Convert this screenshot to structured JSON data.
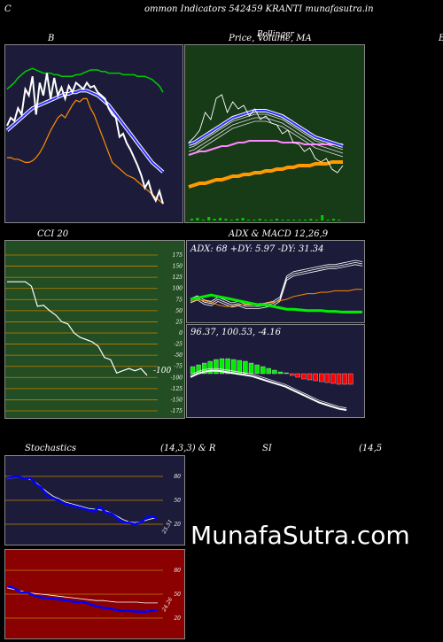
{
  "header": {
    "letter_c": "C",
    "title": "ommon  Indicators 542459 KRANTI munafasutra.in",
    "letter_b_right": "B"
  },
  "panels": {
    "bollinger": {
      "title": "B",
      "bg": "#1c1c3a"
    },
    "price": {
      "title": "Price,  Volume,  MA",
      "overlap": "Bollinger",
      "bg": "#173a17"
    },
    "cci": {
      "title": "CCI 20",
      "bg": "#234d23",
      "value_label": "-100",
      "ticks": [
        "175",
        "150",
        "125",
        "100",
        "75",
        "50",
        "25",
        "0",
        "-25",
        "-50",
        "-75",
        "-100",
        "-125",
        "-150",
        "-175"
      ]
    },
    "adx": {
      "title": "ADX  & MACD 12,26,9",
      "label": "ADX: 68  +DY: 5.97 -DY: 31.34",
      "bg": "#1c1c3a"
    },
    "macd": {
      "label": "96.37,  100.53,  -4.16",
      "bg": "#1c1c3a"
    },
    "stoch": {
      "title_left": "Stochastics",
      "title_mid": "(14,3,3) & R",
      "ticks": [
        "80",
        "50",
        "20"
      ],
      "value_label": "25.51",
      "bg": "#1c1c3a"
    },
    "rsi": {
      "title_mid": "SI",
      "title_right": "(14,5",
      "ticks": [
        "80",
        "50",
        "20"
      ],
      "value_label": "24.26",
      "bg": "#8b0000"
    }
  },
  "watermark": "MunafaSutra.com",
  "colors": {
    "accent_blue": "#0000ff",
    "orange": "#ff8c00",
    "green": "#00cc00",
    "grid_orange": "#c08000"
  },
  "chart_data": [
    {
      "type": "line",
      "name": "bollinger",
      "series": [
        {
          "name": "close",
          "color": "#ffffff",
          "values": [
            0.55,
            0.6,
            0.58,
            0.66,
            0.62,
            0.78,
            0.74,
            0.86,
            0.62,
            0.82,
            0.74,
            0.88,
            0.72,
            0.85,
            0.74,
            0.79,
            0.72,
            0.8,
            0.76,
            0.82,
            0.8,
            0.78,
            0.82,
            0.79,
            0.8,
            0.76,
            0.74,
            0.72,
            0.66,
            0.62,
            0.6,
            0.48,
            0.5,
            0.44,
            0.4,
            0.35,
            0.3,
            0.24,
            0.16,
            0.2,
            0.12,
            0.08,
            0.14,
            0.06
          ]
        },
        {
          "name": "upper",
          "color": "#00cc00",
          "values": [
            0.78,
            0.8,
            0.82,
            0.85,
            0.87,
            0.89,
            0.9,
            0.91,
            0.9,
            0.89,
            0.88,
            0.88,
            0.88,
            0.87,
            0.87,
            0.86,
            0.86,
            0.86,
            0.86,
            0.87,
            0.87,
            0.88,
            0.89,
            0.9,
            0.9,
            0.9,
            0.89,
            0.89,
            0.88,
            0.88,
            0.88,
            0.88,
            0.87,
            0.87,
            0.87,
            0.87,
            0.86,
            0.86,
            0.86,
            0.85,
            0.84,
            0.82,
            0.8,
            0.76
          ]
        },
        {
          "name": "middle",
          "color": "#3333ff",
          "values": [
            0.52,
            0.54,
            0.56,
            0.58,
            0.6,
            0.62,
            0.64,
            0.66,
            0.67,
            0.68,
            0.69,
            0.7,
            0.71,
            0.72,
            0.73,
            0.74,
            0.75,
            0.75,
            0.76,
            0.76,
            0.77,
            0.77,
            0.77,
            0.76,
            0.75,
            0.74,
            0.72,
            0.7,
            0.68,
            0.65,
            0.62,
            0.59,
            0.56,
            0.53,
            0.5,
            0.47,
            0.44,
            0.41,
            0.38,
            0.35,
            0.32,
            0.3,
            0.28,
            0.26
          ]
        },
        {
          "name": "lower",
          "color": "#ff8c00",
          "values": [
            0.35,
            0.35,
            0.34,
            0.34,
            0.33,
            0.32,
            0.32,
            0.33,
            0.35,
            0.38,
            0.42,
            0.47,
            0.52,
            0.56,
            0.6,
            0.62,
            0.6,
            0.64,
            0.68,
            0.71,
            0.7,
            0.72,
            0.72,
            0.66,
            0.62,
            0.56,
            0.5,
            0.44,
            0.38,
            0.32,
            0.3,
            0.28,
            0.26,
            0.24,
            0.23,
            0.22,
            0.2,
            0.18,
            0.16,
            0.14,
            0.12,
            0.1,
            0.08,
            0.06
          ]
        }
      ]
    },
    {
      "type": "line",
      "name": "price_ma",
      "series": [
        {
          "name": "close",
          "color": "#ffffff",
          "values": [
            0.45,
            0.48,
            0.52,
            0.62,
            0.58,
            0.7,
            0.72,
            0.62,
            0.68,
            0.64,
            0.66,
            0.6,
            0.64,
            0.58,
            0.6,
            0.56,
            0.55,
            0.5,
            0.52,
            0.45,
            0.44,
            0.4,
            0.42,
            0.36,
            0.34,
            0.36,
            0.3,
            0.28,
            0.32
          ]
        },
        {
          "name": "ma_blue",
          "color": "#3333ff",
          "values": [
            0.44,
            0.45,
            0.47,
            0.49,
            0.51,
            0.53,
            0.55,
            0.57,
            0.59,
            0.6,
            0.61,
            0.62,
            0.63,
            0.63,
            0.63,
            0.62,
            0.61,
            0.6,
            0.58,
            0.56,
            0.54,
            0.52,
            0.5,
            0.48,
            0.47,
            0.46,
            0.45,
            0.44,
            0.43
          ]
        },
        {
          "name": "ma_pink",
          "color": "#ff88ff",
          "values": [
            0.38,
            0.39,
            0.4,
            0.4,
            0.41,
            0.42,
            0.43,
            0.43,
            0.44,
            0.45,
            0.45,
            0.46,
            0.46,
            0.46,
            0.46,
            0.46,
            0.46,
            0.45,
            0.45,
            0.45,
            0.45,
            0.44,
            0.44,
            0.44,
            0.44,
            0.44,
            0.44,
            0.44,
            0.44
          ]
        },
        {
          "name": "ma_orange",
          "color": "#ff9900",
          "values": [
            0.2,
            0.21,
            0.22,
            0.22,
            0.23,
            0.24,
            0.24,
            0.25,
            0.26,
            0.26,
            0.27,
            0.27,
            0.28,
            0.28,
            0.29,
            0.29,
            0.3,
            0.3,
            0.31,
            0.31,
            0.32,
            0.32,
            0.32,
            0.33,
            0.33,
            0.33,
            0.34,
            0.34,
            0.34
          ]
        }
      ]
    },
    {
      "type": "line",
      "name": "cci",
      "ylim": [
        -175,
        175
      ],
      "series": [
        {
          "name": "cci",
          "color": "#ffffff",
          "values": [
            115,
            115,
            115,
            115,
            105,
            60,
            62,
            50,
            40,
            25,
            20,
            0,
            -10,
            -15,
            -20,
            -30,
            -55,
            -60,
            -90,
            -85,
            -80,
            -85,
            -80,
            -95
          ]
        }
      ]
    },
    {
      "type": "line",
      "name": "adx",
      "series": [
        {
          "name": "adx",
          "color": "#ffffff",
          "values": [
            0.28,
            0.32,
            0.26,
            0.24,
            0.3,
            0.26,
            0.22,
            0.24,
            0.2,
            0.2,
            0.2,
            0.22,
            0.24,
            0.3,
            0.6,
            0.66,
            0.68,
            0.7,
            0.72,
            0.74,
            0.76,
            0.76,
            0.78,
            0.8,
            0.82,
            0.8
          ]
        },
        {
          "name": "plus_dy",
          "color": "#00ee00",
          "values": [
            0.3,
            0.32,
            0.34,
            0.36,
            0.34,
            0.32,
            0.3,
            0.28,
            0.26,
            0.24,
            0.22,
            0.22,
            0.2,
            0.18,
            0.16,
            0.16,
            0.15,
            0.14,
            0.14,
            0.14,
            0.13,
            0.13,
            0.12,
            0.12,
            0.12,
            0.12
          ]
        },
        {
          "name": "minus_dy",
          "color": "#ff8c00",
          "values": [
            0.26,
            0.3,
            0.28,
            0.26,
            0.22,
            0.2,
            0.2,
            0.22,
            0.22,
            0.22,
            0.24,
            0.24,
            0.26,
            0.28,
            0.3,
            0.34,
            0.36,
            0.38,
            0.38,
            0.4,
            0.4,
            0.42,
            0.42,
            0.42,
            0.44,
            0.44
          ]
        }
      ]
    },
    {
      "type": "bar",
      "name": "macd_histogram",
      "values": [
        0.4,
        0.5,
        0.6,
        0.7,
        0.8,
        0.85,
        0.85,
        0.8,
        0.75,
        0.7,
        0.6,
        0.5,
        0.4,
        0.3,
        0.2,
        0.1,
        0.05,
        -0.1,
        -0.2,
        -0.3,
        -0.35,
        -0.4,
        -0.45,
        -0.5,
        -0.55,
        -0.6,
        -0.6,
        -0.6
      ]
    },
    {
      "type": "line",
      "name": "stochastics",
      "ylim": [
        0,
        100
      ],
      "series": [
        {
          "name": "k",
          "color": "#0000ff",
          "values": [
            78,
            79,
            80,
            77,
            78,
            70,
            65,
            55,
            52,
            50,
            45,
            44,
            42,
            40,
            38,
            36,
            42,
            35,
            33,
            28,
            22,
            22,
            20,
            22,
            28,
            30,
            27
          ]
        },
        {
          "name": "d",
          "color": "#ffffff",
          "values": [
            77,
            78,
            79,
            78,
            76,
            72,
            66,
            60,
            55,
            52,
            48,
            46,
            44,
            42,
            40,
            39,
            38,
            37,
            34,
            30,
            26,
            23,
            22,
            23,
            25,
            27,
            28
          ]
        }
      ]
    },
    {
      "type": "line",
      "name": "rsi",
      "ylim": [
        0,
        100
      ],
      "series": [
        {
          "name": "rsi",
          "color": "#0000ff",
          "values": [
            60,
            58,
            52,
            52,
            48,
            46,
            45,
            44,
            43,
            42,
            40,
            40,
            38,
            35,
            33,
            32,
            30,
            29,
            29,
            28,
            28,
            29,
            30
          ]
        },
        {
          "name": "mfi",
          "color": "#ffffff",
          "values": [
            58,
            56,
            54,
            52,
            51,
            50,
            49,
            48,
            47,
            46,
            45,
            44,
            43,
            42,
            42,
            41,
            40,
            40,
            40,
            40,
            39,
            39,
            39
          ]
        }
      ]
    }
  ]
}
